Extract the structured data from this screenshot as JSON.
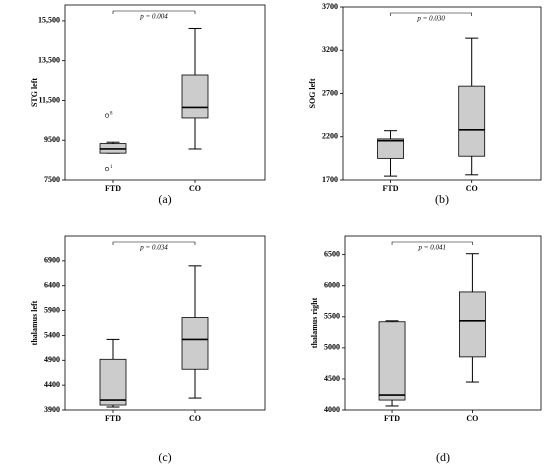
{
  "chart_data": [
    {
      "type": "box",
      "ylabel": "STG left",
      "caption": "(a)",
      "annotation": "p = 0.004",
      "categories": [
        "FTD",
        "CO"
      ],
      "boxes": [
        {
          "min": 8850,
          "q1": 8850,
          "median": 9060,
          "q3": 9330,
          "max": 9400
        },
        {
          "min": 9060,
          "q1": 10620,
          "median": 11150,
          "q3": 12780,
          "max": 15120
        }
      ],
      "outliers": [
        {
          "value": 10740,
          "label": "8"
        },
        {
          "value": 8050,
          "label": "1"
        }
      ],
      "color": "#cccccc",
      "ylim": [
        7500,
        16300
      ],
      "yticks": [
        7500,
        9500,
        {
          "value": 11500,
          "label": "11,500"
        },
        {
          "value": 13500,
          "label": "13,500"
        },
        {
          "value": 15500,
          "label": "15,500"
        }
      ]
    },
    {
      "type": "box",
      "ylabel": "SOG left",
      "caption": "(b)",
      "annotation": "p = 0.030",
      "categories": [
        "FTD",
        "CO"
      ],
      "boxes": [
        {
          "min": 1745,
          "q1": 1950,
          "median": 2155,
          "q3": 2175,
          "max": 2270
        },
        {
          "min": 1760,
          "q1": 1975,
          "median": 2280,
          "q3": 2785,
          "max": 3340
        }
      ],
      "color": "#cccccc",
      "ylim": [
        1700,
        3700
      ],
      "yticks": [
        1700,
        2200,
        2700,
        3200,
        3700
      ]
    },
    {
      "type": "box",
      "ylabel": "thalamus left",
      "caption": "(c)",
      "annotation": "p = 0.034",
      "categories": [
        "FTD",
        "CO"
      ],
      "boxes": [
        {
          "min": 3960,
          "q1": 4000,
          "median": 4100,
          "q3": 4920,
          "max": 5320
        },
        {
          "min": 4140,
          "q1": 4720,
          "median": 5320,
          "q3": 5760,
          "max": 6800
        }
      ],
      "color": "#cccccc",
      "ylim": [
        3900,
        7400
      ],
      "yticks": [
        3900,
        4400,
        4900,
        5400,
        5900,
        6400,
        6900
      ]
    },
    {
      "type": "box",
      "ylabel": "thalamus right",
      "caption": "(d)",
      "annotation": "p = 0.041",
      "categories": [
        "FTD",
        "CO"
      ],
      "boxes": [
        {
          "min": 4065,
          "q1": 4160,
          "median": 4240,
          "q3": 5420,
          "max": 5435
        },
        {
          "min": 4450,
          "q1": 4855,
          "median": 5435,
          "q3": 5900,
          "max": 6515
        }
      ],
      "color": "#cccccc",
      "ylim": [
        4000,
        6800
      ],
      "yticks": [
        4000,
        4500,
        5000,
        5500,
        6000,
        6500
      ]
    }
  ]
}
